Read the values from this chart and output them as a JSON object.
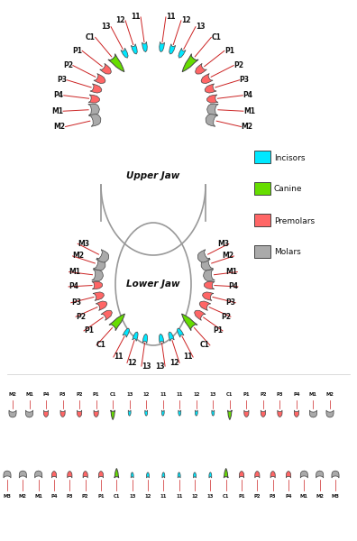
{
  "bg_color": "#ffffff",
  "colors": {
    "incisor": "#00e8ff",
    "canine": "#66dd00",
    "premolar": "#ff6666",
    "molar": "#aaaaaa",
    "outline": "#444444",
    "label_line": "#cc2222",
    "text": "#111111",
    "jaw_outline": "#999999"
  },
  "legend": {
    "items": [
      "Incisors",
      "Canine",
      "Premolars",
      "Molars"
    ],
    "colors": [
      "#00e8ff",
      "#66dd00",
      "#ff6666",
      "#aaaaaa"
    ]
  },
  "upper_jaw_label": "Upper Jaw",
  "lower_jaw_label": "Lower Jaw"
}
